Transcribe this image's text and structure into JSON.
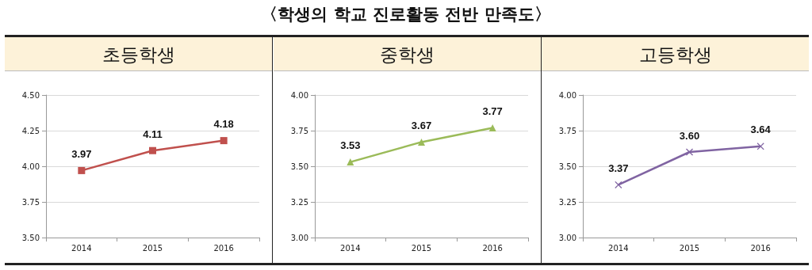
{
  "chart_data": [
    {
      "type": "line",
      "title": "초등학생",
      "annotations": [
        "〈학생의 학교 진로활동 전반 만족도〉"
      ],
      "categories": [
        "2014",
        "2015",
        "2016"
      ],
      "series": [
        {
          "color": "#c0504d",
          "values": [
            3.97,
            4.11,
            4.18
          ],
          "value_labels": [
            "3.97",
            "4.11",
            "4.18"
          ]
        }
      ],
      "ylim": [
        3.5,
        4.5
      ],
      "yticks": [
        {
          "value": 3.5,
          "label": "3.50"
        },
        {
          "value": 3.75,
          "label": "3.75"
        },
        {
          "value": 4,
          "label": "4.00"
        },
        {
          "value": 4.25,
          "label": "4.25"
        },
        {
          "value": 4.5,
          "label": "4.50"
        }
      ],
      "grid": "y",
      "marker": "square"
    },
    {
      "type": "line",
      "title": "중학생",
      "categories": [
        "2014",
        "2015",
        "2016"
      ],
      "series": [
        {
          "color": "#9bbb59",
          "values": [
            3.53,
            3.67,
            3.77
          ],
          "value_labels": [
            "3.53",
            "3.67",
            "3.77"
          ]
        }
      ],
      "ylim": [
        3,
        4
      ],
      "yticks": [
        {
          "value": 3,
          "label": "3.00"
        },
        {
          "value": 3.25,
          "label": "3.25"
        },
        {
          "value": 3.5,
          "label": "3.50"
        },
        {
          "value": 3.75,
          "label": "3.75"
        },
        {
          "value": 4,
          "label": "4.00"
        }
      ],
      "grid": "y",
      "marker": "triangle"
    },
    {
      "type": "line",
      "title": "고등학생",
      "categories": [
        "2014",
        "2015",
        "2016"
      ],
      "series": [
        {
          "color": "#8064a2",
          "values": [
            3.37,
            3.6,
            3.64
          ],
          "value_labels": [
            "3.37",
            "3.60",
            "3.64"
          ]
        }
      ],
      "ylim": [
        3,
        4
      ],
      "yticks": [
        {
          "value": 3,
          "label": "3.00"
        },
        {
          "value": 3.25,
          "label": "3.25"
        },
        {
          "value": 3.5,
          "label": "3.50"
        },
        {
          "value": 3.75,
          "label": "3.75"
        },
        {
          "value": 4,
          "label": "4.00"
        }
      ],
      "grid": "y",
      "marker": "cross"
    }
  ]
}
